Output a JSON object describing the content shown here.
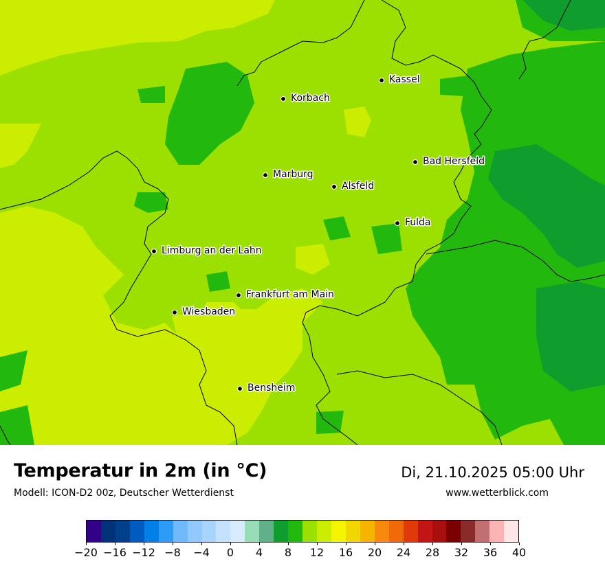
{
  "title": "Temperatur in 2m (in °C)",
  "subtitle": "Modell: ICON-D2 00z, Deutscher Wetterdienst",
  "datetime": "Di, 21.10.2025 05:00 Uhr",
  "website": "www.wetterblick.com",
  "colors": {
    "temp_10": "#9be000",
    "temp_12": "#cbed00",
    "temp_8": "#22b80e",
    "temp_6": "#0f9e2e"
  },
  "cities": [
    {
      "name": "Kassel"
    },
    {
      "name": "Korbach"
    },
    {
      "name": "Bad Hersfeld"
    },
    {
      "name": "Marburg"
    },
    {
      "name": "Alsfeld"
    },
    {
      "name": "Fulda"
    },
    {
      "name": "Limburg an der Lahn"
    },
    {
      "name": "Frankfurt am Main"
    },
    {
      "name": "Wiesbaden"
    },
    {
      "name": "Bensheim"
    }
  ],
  "colorbar": {
    "ticks": [
      "−20",
      "−16",
      "−12",
      "−8",
      "−4",
      "0",
      "4",
      "8",
      "12",
      "16",
      "20",
      "24",
      "28",
      "32",
      "36",
      "40"
    ],
    "colors": [
      "#330088",
      "#00327a",
      "#003f8a",
      "#005bc0",
      "#0080e6",
      "#2d9cf5",
      "#70b9fa",
      "#92c8fb",
      "#a8d4fc",
      "#c4e2fd",
      "#d8ecfe",
      "#96dcb6",
      "#60b08a",
      "#0f9e2e",
      "#22b80e",
      "#9be000",
      "#cbed00",
      "#f5f500",
      "#f2d600",
      "#f4b400",
      "#f58a0c",
      "#f06a0a",
      "#e03a08",
      "#c21616",
      "#a81010",
      "#7a0000",
      "#8a2a2a",
      "#c07070",
      "#fab4b4",
      "#fde6e6"
    ]
  }
}
